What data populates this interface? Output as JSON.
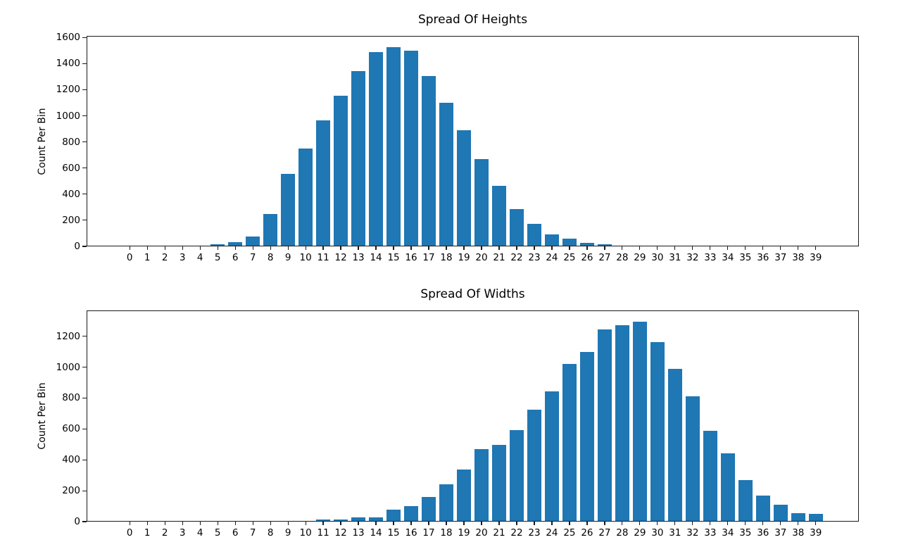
{
  "figure": {
    "background": "#ffffff",
    "bar_color": "#1f77b4",
    "spine_color": "#1a1a1a"
  },
  "chart_data": [
    {
      "type": "bar",
      "title": "Spread Of Heights",
      "xlabel": "",
      "ylabel": "Count Per Bin",
      "categories": [
        0,
        1,
        2,
        3,
        4,
        5,
        6,
        7,
        8,
        9,
        10,
        11,
        12,
        13,
        14,
        15,
        16,
        17,
        18,
        19,
        20,
        21,
        22,
        23,
        24,
        25,
        26,
        27,
        28,
        29,
        30,
        31,
        32,
        33,
        34,
        35,
        36,
        37,
        38,
        39
      ],
      "values": [
        0,
        0,
        0,
        0,
        0,
        12,
        28,
        70,
        245,
        555,
        750,
        965,
        1160,
        1350,
        1497,
        1535,
        1507,
        1312,
        1105,
        890,
        668,
        462,
        283,
        170,
        88,
        55,
        22,
        12,
        0,
        0,
        0,
        0,
        0,
        0,
        0,
        0,
        0,
        0,
        0,
        0
      ],
      "yticks": [
        0,
        200,
        400,
        600,
        800,
        1000,
        1200,
        1400,
        1600
      ],
      "ylim": [
        0,
        1612
      ],
      "bar_color": "#1f77b4",
      "grid": false,
      "legend": null
    },
    {
      "type": "bar",
      "title": "Spread Of Widths",
      "xlabel": "",
      "ylabel": "Count Per Bin",
      "categories": [
        0,
        1,
        2,
        3,
        4,
        5,
        6,
        7,
        8,
        9,
        10,
        11,
        12,
        13,
        14,
        15,
        16,
        17,
        18,
        19,
        20,
        21,
        22,
        23,
        24,
        25,
        26,
        27,
        28,
        29,
        30,
        31,
        32,
        33,
        34,
        35,
        36,
        37,
        38,
        39
      ],
      "values": [
        0,
        0,
        0,
        0,
        0,
        0,
        0,
        0,
        0,
        0,
        0,
        8,
        8,
        25,
        25,
        75,
        98,
        158,
        240,
        335,
        470,
        498,
        594,
        724,
        845,
        1025,
        1103,
        1248,
        1276,
        1302,
        1166,
        992,
        814,
        590,
        442,
        265,
        165,
        104,
        52,
        46
      ],
      "yticks": [
        0,
        200,
        400,
        600,
        800,
        1000,
        1200
      ],
      "ylim": [
        0,
        1367
      ],
      "bar_color": "#1f77b4",
      "grid": false,
      "legend": null
    }
  ]
}
